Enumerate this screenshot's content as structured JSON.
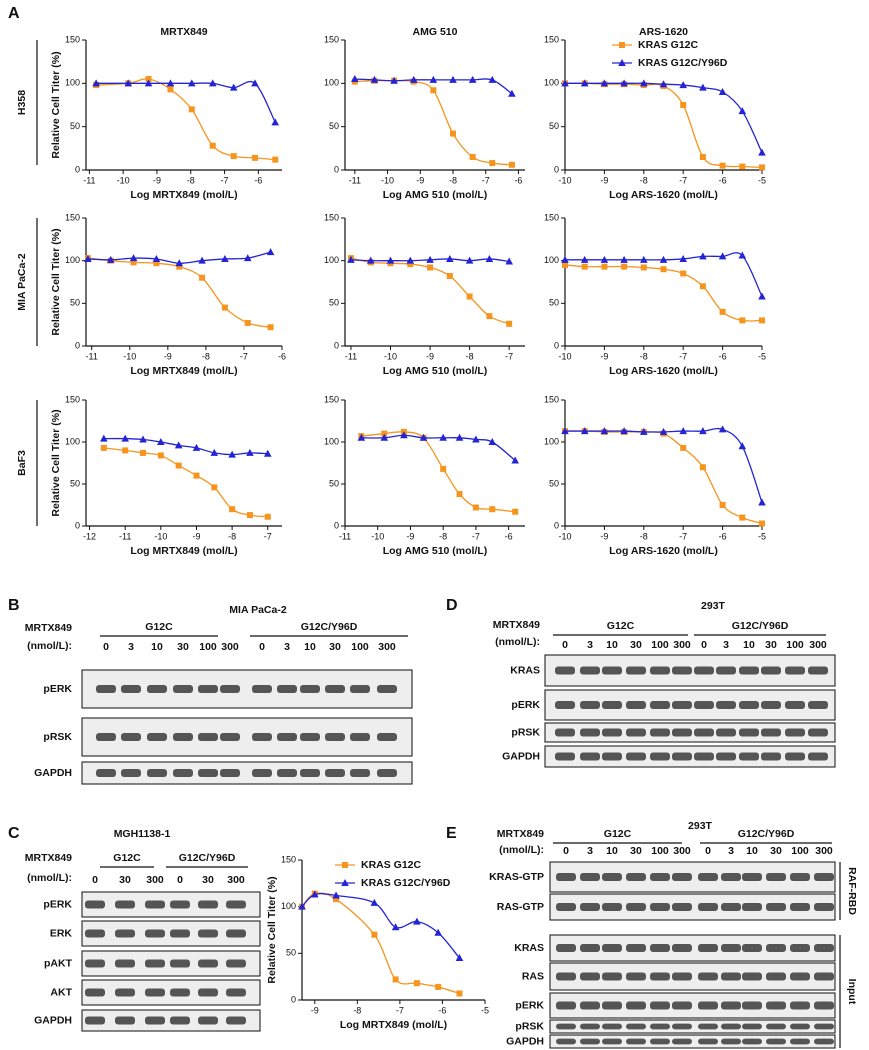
{
  "panel_labels": [
    "A",
    "B",
    "C",
    "D",
    "E"
  ],
  "row_labels": [
    "H358",
    "MIA PaCa-2",
    "BaF3"
  ],
  "chart_data": [
    {
      "type": "line",
      "title": "MRTX849",
      "y_label": "Relative Cell Titer (%)",
      "x_label": "Log MRTX849 (mol/L)",
      "x": [
        -10.8,
        -9.85,
        -9.25,
        -8.6,
        -7.97,
        -7.35,
        -6.73,
        -6.1,
        -5.5
      ],
      "xlim": [
        -11.1,
        -5.3
      ],
      "xticks": [
        -11,
        -10,
        -9,
        -8,
        -7,
        -6
      ],
      "ylim": [
        0,
        150
      ],
      "yticks": [
        0,
        50,
        100,
        150
      ],
      "series": [
        {
          "color": "#f7941d",
          "marker": "square",
          "values": [
            98,
            100,
            105,
            93,
            70,
            28,
            16,
            14,
            12
          ]
        },
        {
          "color": "#2424d4",
          "marker": "triangle",
          "values": [
            100,
            100,
            100,
            100,
            100,
            100,
            95,
            100,
            55
          ]
        }
      ]
    },
    {
      "type": "line",
      "title": "AMG 510",
      "x_label": "Log AMG 510 (mol/L)",
      "x": [
        -11,
        -10.4,
        -9.8,
        -9.2,
        -8.6,
        -8,
        -7.4,
        -6.8,
        -6.2
      ],
      "xlim": [
        -11.3,
        -5.8
      ],
      "xticks": [
        -11,
        -10,
        -9,
        -8,
        -7,
        -6
      ],
      "ylim": [
        0,
        150
      ],
      "yticks": [
        0,
        50,
        100,
        150
      ],
      "series": [
        {
          "color": "#f7941d",
          "marker": "square",
          "values": [
            102,
            103,
            103,
            102,
            92,
            42,
            15,
            8,
            6
          ]
        },
        {
          "color": "#2424d4",
          "marker": "triangle",
          "values": [
            105,
            104,
            103,
            104,
            104,
            104,
            104,
            104,
            88
          ]
        }
      ]
    },
    {
      "type": "line",
      "title": "ARS-1620",
      "x_label": "Log ARS-1620 (mol/L)",
      "legend": "upper right",
      "x": [
        -10,
        -9.5,
        -9,
        -8.5,
        -8,
        -7.5,
        -7,
        -6.5,
        -6,
        -5.5,
        -5
      ],
      "xlim": [
        -10,
        -5
      ],
      "xticks": [
        -10,
        -9,
        -8,
        -7,
        -6,
        -5
      ],
      "ylim": [
        0,
        150
      ],
      "yticks": [
        0,
        50,
        100,
        150
      ],
      "series": [
        {
          "name": "KRAS G12C",
          "color": "#f7941d",
          "marker": "square",
          "values": [
            100,
            100,
            99,
            99,
            98,
            97,
            75,
            15,
            5,
            4,
            3
          ]
        },
        {
          "name": "KRAS G12C/Y96D",
          "color": "#2424d4",
          "marker": "triangle",
          "values": [
            100,
            100,
            100,
            100,
            100,
            99,
            98,
            95,
            90,
            68,
            20
          ]
        }
      ]
    },
    {
      "type": "line",
      "y_label": "Relative Cell Titer (%)",
      "x_label": "Log MRTX849 (mol/L)",
      "x": [
        -11.1,
        -10.5,
        -9.9,
        -9.3,
        -8.7,
        -8.1,
        -7.5,
        -6.9,
        -6.3
      ],
      "xlim": [
        -11.15,
        -6
      ],
      "xticks": [
        -11,
        -10,
        -9,
        -8,
        -7,
        -6
      ],
      "ylim": [
        0,
        150
      ],
      "yticks": [
        0,
        50,
        100,
        150
      ],
      "series": [
        {
          "color": "#f7941d",
          "marker": "square",
          "values": [
            103,
            100,
            98,
            97,
            93,
            80,
            45,
            27,
            22
          ]
        },
        {
          "color": "#2424d4",
          "marker": "triangle",
          "values": [
            102,
            101,
            103,
            102,
            97,
            100,
            102,
            103,
            110
          ]
        }
      ]
    },
    {
      "type": "line",
      "x_label": "Log AMG 510 (mol/L)",
      "x": [
        -11,
        -10.5,
        -10,
        -9.5,
        -9,
        -8.5,
        -8,
        -7.5,
        -7
      ],
      "xlim": [
        -11.15,
        -6.6
      ],
      "xticks": [
        -11,
        -10,
        -9,
        -8,
        -7
      ],
      "ylim": [
        0,
        150
      ],
      "yticks": [
        0,
        50,
        100,
        150
      ],
      "series": [
        {
          "color": "#f7941d",
          "marker": "square",
          "values": [
            103,
            98,
            97,
            96,
            92,
            82,
            58,
            35,
            26
          ]
        },
        {
          "color": "#2424d4",
          "marker": "triangle",
          "values": [
            101,
            100,
            100,
            100,
            101,
            102,
            100,
            102,
            99
          ]
        }
      ]
    },
    {
      "type": "line",
      "x_label": "Log ARS-1620 (mol/L)",
      "x": [
        -10,
        -9.5,
        -9,
        -8.5,
        -8,
        -7.5,
        -7,
        -6.5,
        -6,
        -5.5,
        -5
      ],
      "xlim": [
        -10,
        -5
      ],
      "xticks": [
        -10,
        -9,
        -8,
        -7,
        -6,
        -5
      ],
      "ylim": [
        0,
        150
      ],
      "yticks": [
        0,
        50,
        100,
        150
      ],
      "series": [
        {
          "color": "#f7941d",
          "marker": "square",
          "values": [
            95,
            93,
            93,
            93,
            92,
            90,
            85,
            70,
            40,
            30,
            30
          ]
        },
        {
          "color": "#2424d4",
          "marker": "triangle",
          "values": [
            101,
            101,
            101,
            101,
            101,
            101,
            102,
            105,
            105,
            106,
            58
          ]
        }
      ]
    },
    {
      "type": "line",
      "y_label": "Relative Cell Titer (%)",
      "x_label": "Log MRTX849 (mol/L)",
      "x": [
        -11.6,
        -11,
        -10.5,
        -10,
        -9.5,
        -9,
        -8.5,
        -8,
        -7.5,
        -7
      ],
      "xlim": [
        -12.1,
        -6.6
      ],
      "xticks": [
        -12,
        -11,
        -10,
        -9,
        -8,
        -7
      ],
      "ylim": [
        0,
        150
      ],
      "yticks": [
        0,
        50,
        100,
        150
      ],
      "series": [
        {
          "color": "#f7941d",
          "marker": "square",
          "values": [
            93,
            90,
            87,
            84,
            72,
            60,
            46,
            20,
            13,
            11
          ]
        },
        {
          "color": "#2424d4",
          "marker": "triangle",
          "values": [
            104,
            104,
            103,
            100,
            96,
            93,
            87,
            85,
            87,
            86
          ]
        }
      ]
    },
    {
      "type": "line",
      "x_label": "Log AMG 510 (mol/L)",
      "x": [
        -10.5,
        -9.8,
        -9.2,
        -8.6,
        -8,
        -7.5,
        -7,
        -6.5,
        -5.8
      ],
      "xlim": [
        -11,
        -5.5
      ],
      "xticks": [
        -11,
        -10,
        -9,
        -8,
        -7,
        -6
      ],
      "ylim": [
        0,
        150
      ],
      "yticks": [
        0,
        50,
        100,
        150
      ],
      "series": [
        {
          "color": "#f7941d",
          "marker": "square",
          "values": [
            107,
            110,
            112,
            105,
            68,
            38,
            22,
            20,
            17
          ]
        },
        {
          "color": "#2424d4",
          "marker": "triangle",
          "values": [
            105,
            105,
            108,
            105,
            105,
            105,
            103,
            100,
            78
          ]
        }
      ]
    },
    {
      "type": "line",
      "x_label": "Log ARS-1620 (mol/L)",
      "x": [
        -10,
        -9.5,
        -9,
        -8.5,
        -8,
        -7.5,
        -7,
        -6.5,
        -6,
        -5.5,
        -5
      ],
      "xlim": [
        -10,
        -5
      ],
      "xticks": [
        -10,
        -9,
        -8,
        -7,
        -6,
        -5
      ],
      "ylim": [
        0,
        150
      ],
      "yticks": [
        0,
        50,
        100,
        150
      ],
      "series": [
        {
          "color": "#f7941d",
          "marker": "square",
          "values": [
            113,
            113,
            112,
            112,
            112,
            110,
            93,
            70,
            25,
            10,
            3
          ]
        },
        {
          "color": "#2424d4",
          "marker": "triangle",
          "values": [
            113,
            113,
            113,
            113,
            112,
            112,
            113,
            113,
            115,
            95,
            28
          ]
        }
      ]
    },
    {
      "type": "line",
      "y_label": "Relative Cell Titer (%)",
      "x_label": "Log MRTX849 (mol/L)",
      "legend": "upper right",
      "x": [
        -9.3,
        -9,
        -8.5,
        -7.6,
        -7.1,
        -6.6,
        -6.1,
        -5.6
      ],
      "xlim": [
        -9.3,
        -5
      ],
      "xticks": [
        -9,
        -8,
        -7,
        -6,
        -5
      ],
      "ylim": [
        0,
        150
      ],
      "yticks": [
        0,
        50,
        100,
        150
      ],
      "series": [
        {
          "name": "KRAS G12C",
          "color": "#f7941d",
          "marker": "square",
          "values": [
            100,
            114,
            108,
            70,
            22,
            18,
            14,
            7
          ]
        },
        {
          "name": "KRAS G12C/Y96D",
          "color": "#2424d4",
          "marker": "triangle",
          "values": [
            100,
            113,
            112,
            104,
            78,
            84,
            72,
            45
          ]
        }
      ]
    }
  ],
  "blots": [
    {
      "title": "MIA PaCa-2",
      "drug": "MRTX849",
      "unit": "(nmol/L):",
      "groups": [
        "G12C",
        "G12C/Y96D"
      ],
      "lanes": [
        0,
        3,
        10,
        30,
        100,
        300,
        0,
        3,
        10,
        30,
        100,
        300
      ],
      "rows": [
        "pERK",
        "pRSK",
        "GAPDH"
      ]
    },
    {
      "title": "MGH1138-1",
      "drug": "MRTX849",
      "unit": "(nmol/L):",
      "groups": [
        "G12C",
        "G12C/Y96D"
      ],
      "lanes": [
        0,
        30,
        300,
        0,
        30,
        300
      ],
      "rows": [
        "pERK",
        "ERK",
        "pAKT",
        "AKT",
        "GAPDH"
      ]
    },
    {
      "title": "293T",
      "drug": "MRTX849",
      "unit": "(nmol/L):",
      "groups": [
        "G12C",
        "G12C/Y96D"
      ],
      "lanes": [
        0,
        3,
        10,
        30,
        100,
        300,
        0,
        3,
        10,
        30,
        100,
        300
      ],
      "rows": [
        "KRAS",
        "pERK",
        "pRSK",
        "GAPDH"
      ]
    },
    {
      "title": "293T",
      "drug": "MRTX849",
      "unit": "(nmol/L):",
      "groups": [
        "G12C",
        "G12C/Y96D"
      ],
      "lanes": [
        0,
        3,
        10,
        30,
        100,
        300,
        0,
        3,
        10,
        30,
        100,
        300
      ],
      "rows": [
        "KRAS-GTP",
        "RAS-GTP",
        "KRAS",
        "RAS",
        "pERK",
        "pRSK",
        "GAPDH"
      ],
      "side_labels": [
        "RAF-RBD",
        "Input"
      ]
    }
  ]
}
